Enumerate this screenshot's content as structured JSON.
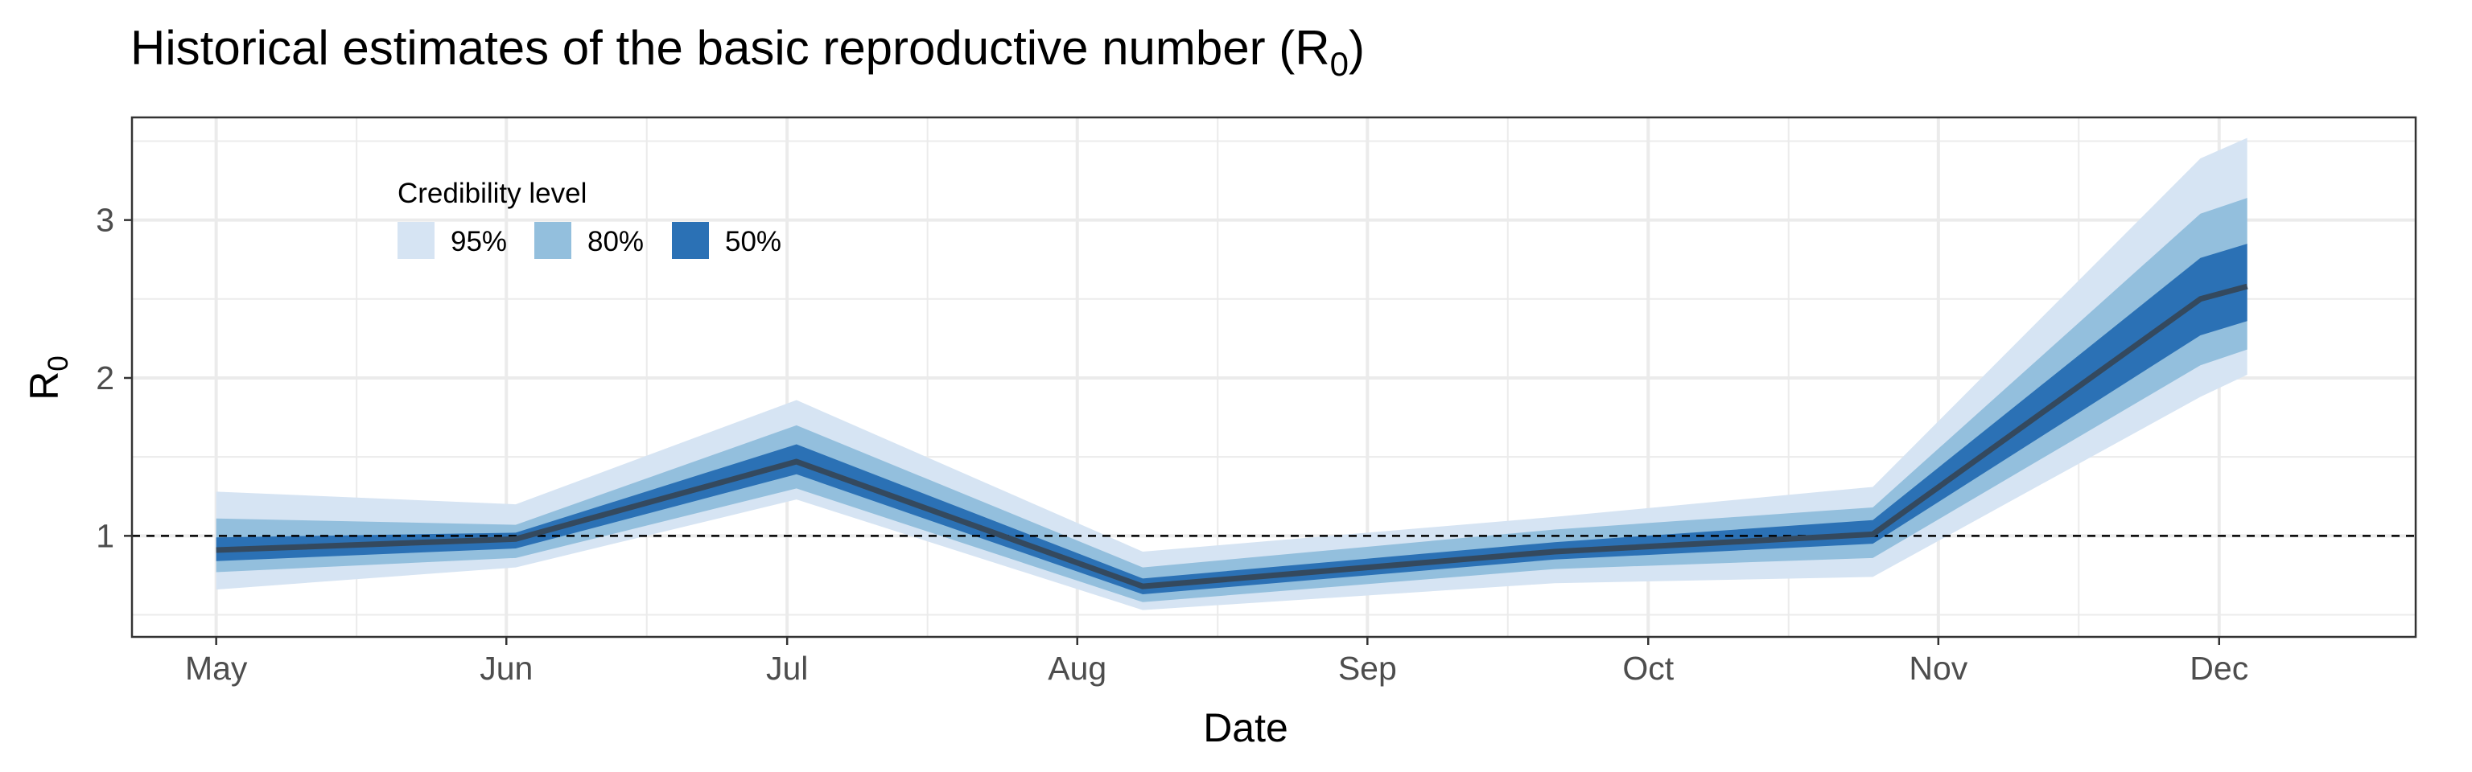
{
  "chart_data": {
    "type": "area",
    "title": "Historical estimates of the basic reproductive number (R",
    "title_sub": "0",
    "title_close": ")",
    "xlabel": "Date",
    "ylabel": "R",
    "ylabel_sub": "0",
    "x_ticks": [
      {
        "date": "2020-05-01",
        "label": "May"
      },
      {
        "date": "2020-06-01",
        "label": "Jun"
      },
      {
        "date": "2020-07-01",
        "label": "Jul"
      },
      {
        "date": "2020-08-01",
        "label": "Aug"
      },
      {
        "date": "2020-09-01",
        "label": "Sep"
      },
      {
        "date": "2020-10-01",
        "label": "Oct"
      },
      {
        "date": "2020-11-01",
        "label": "Nov"
      },
      {
        "date": "2020-12-01",
        "label": "Dec"
      }
    ],
    "x_range": [
      "2020-04-22",
      "2020-12-22"
    ],
    "y_ticks": [
      1,
      2,
      3
    ],
    "y_range": [
      0.36,
      3.65
    ],
    "grid": true,
    "reference_line": {
      "y": 1,
      "style": "dashed"
    },
    "legend": {
      "title": "Credibility level",
      "placement": "top-left",
      "items": [
        {
          "label": "95%",
          "color": "#d6e4f3"
        },
        {
          "label": "80%",
          "color": "#93bfdd"
        },
        {
          "label": "50%",
          "color": "#2b71b5"
        }
      ]
    },
    "median_color": "#34495e",
    "points": [
      {
        "x": "2020-05-01",
        "median": 0.91,
        "lo50": 0.84,
        "hi50": 0.99,
        "lo80": 0.77,
        "hi80": 1.11,
        "lo95": 0.66,
        "hi95": 1.28
      },
      {
        "x": "2020-06-02",
        "median": 0.98,
        "lo50": 0.92,
        "hi50": 1.02,
        "lo80": 0.86,
        "hi80": 1.07,
        "lo95": 0.8,
        "hi95": 1.2
      },
      {
        "x": "2020-07-02",
        "median": 1.47,
        "lo50": 1.39,
        "hi50": 1.58,
        "lo80": 1.3,
        "hi80": 1.7,
        "lo95": 1.23,
        "hi95": 1.86
      },
      {
        "x": "2020-08-08",
        "median": 0.68,
        "lo50": 0.63,
        "hi50": 0.73,
        "lo80": 0.58,
        "hi80": 0.8,
        "lo95": 0.53,
        "hi95": 0.9
      },
      {
        "x": "2020-09-21",
        "median": 0.9,
        "lo50": 0.85,
        "hi50": 0.96,
        "lo80": 0.79,
        "hi80": 1.04,
        "lo95": 0.7,
        "hi95": 1.12
      },
      {
        "x": "2020-10-25",
        "median": 1.01,
        "lo50": 0.95,
        "hi50": 1.1,
        "lo80": 0.86,
        "hi80": 1.18,
        "lo95": 0.74,
        "hi95": 1.31
      },
      {
        "x": "2020-11-29",
        "median": 2.5,
        "lo50": 2.27,
        "hi50": 2.76,
        "lo80": 2.08,
        "hi80": 3.04,
        "lo95": 1.88,
        "hi95": 3.39
      },
      {
        "x": "2020-12-04",
        "median": 2.58,
        "lo50": 2.36,
        "hi50": 2.85,
        "lo80": 2.18,
        "hi80": 3.14,
        "lo95": 2.02,
        "hi95": 3.52
      }
    ]
  }
}
